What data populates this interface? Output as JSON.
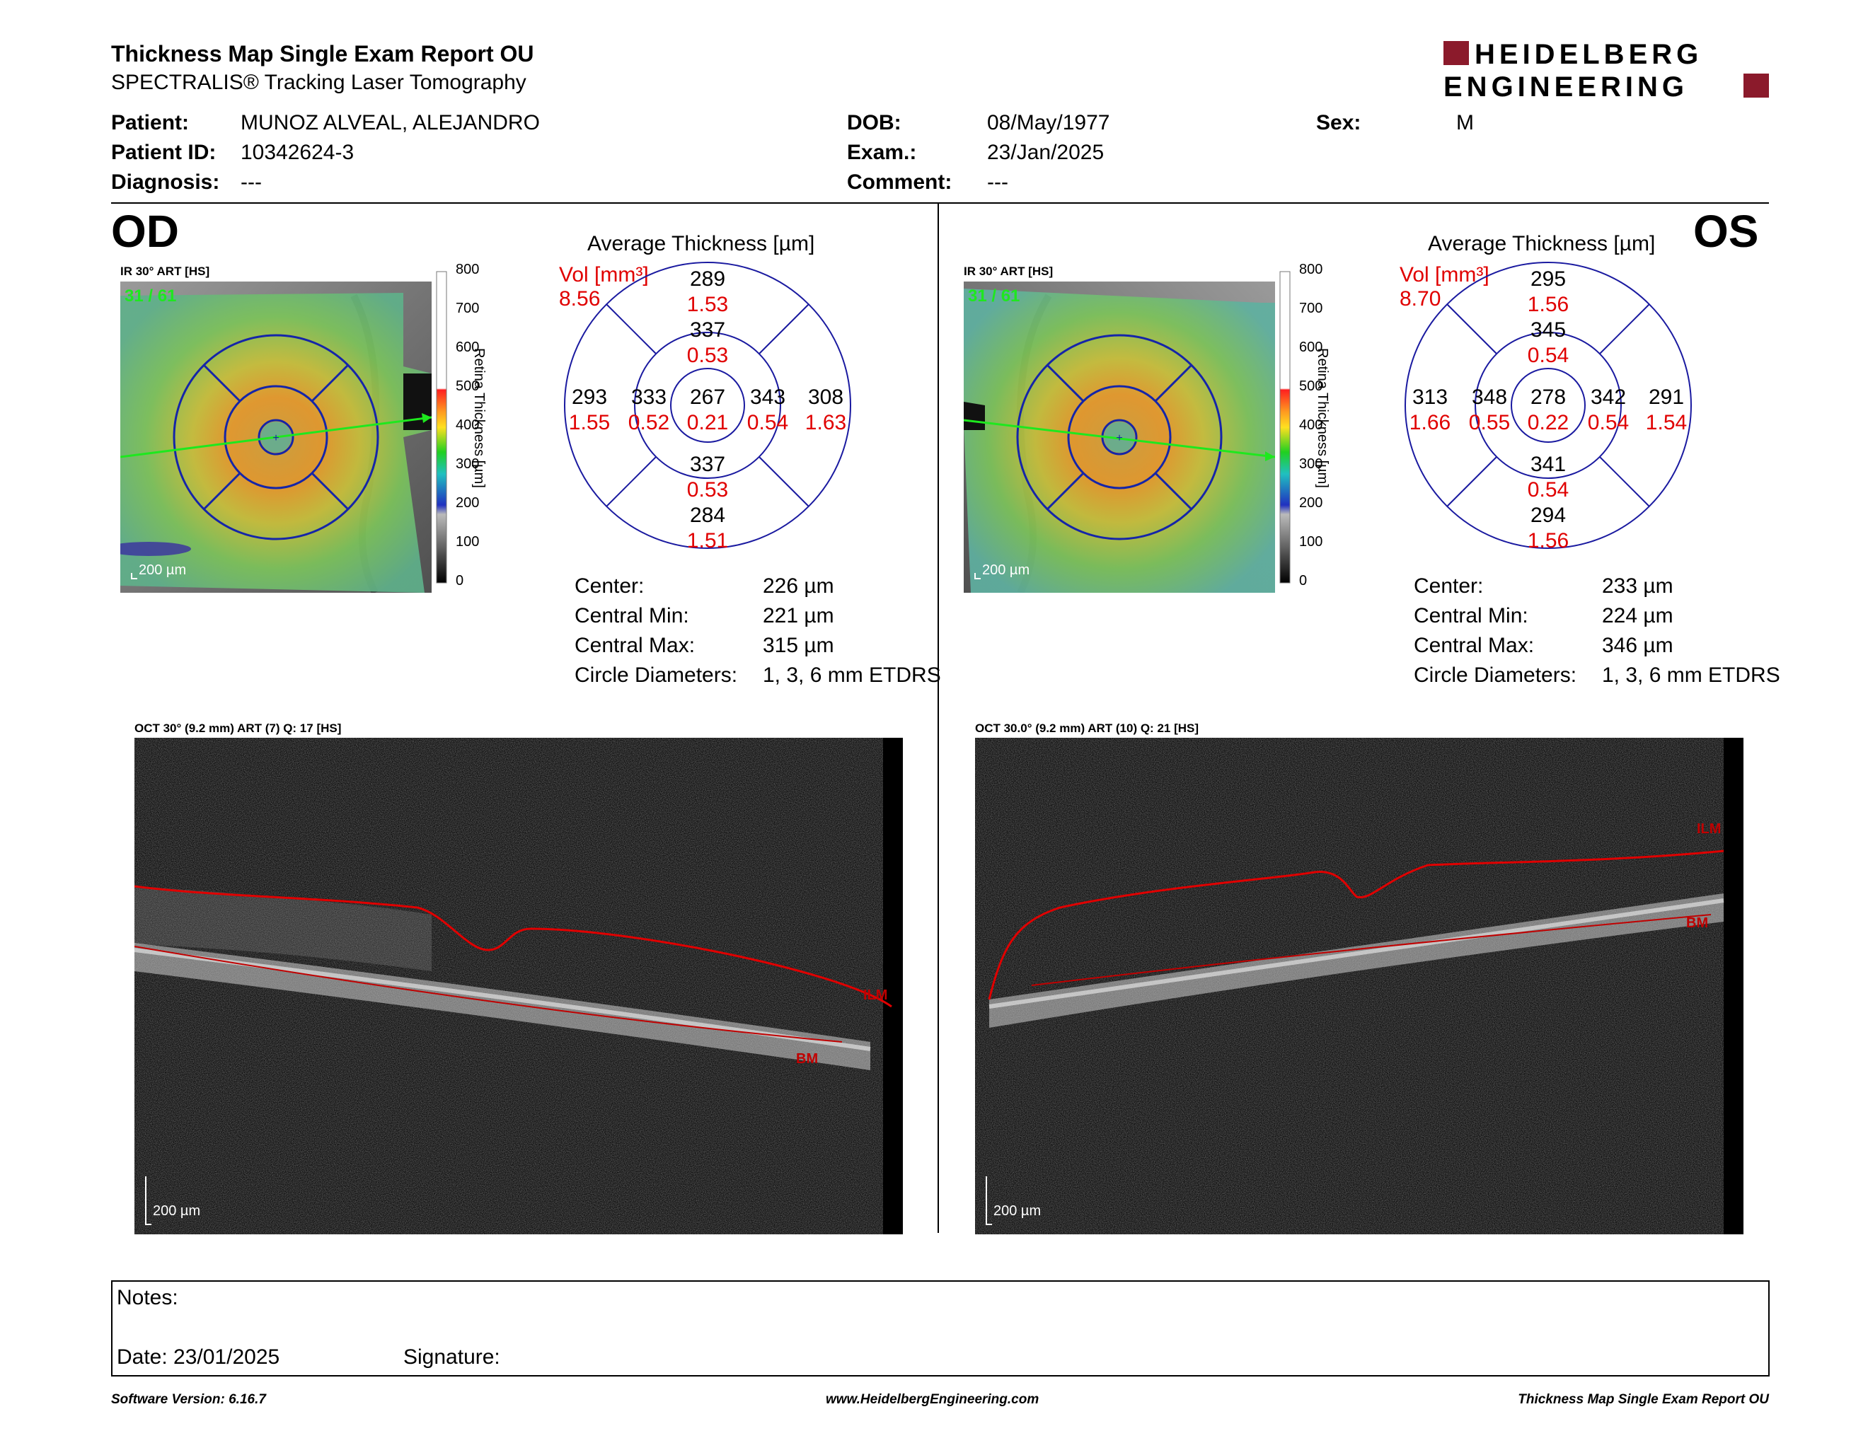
{
  "report": {
    "title": "Thickness Map Single Exam Report OU",
    "subtitle": "SPECTRALIS® Tracking Laser Tomography",
    "logo_line1": "HEIDELBERG",
    "logo_line2": "ENGINEERING",
    "brand_color": "#8b1a2b"
  },
  "patient": {
    "patient_label": "Patient:",
    "patient_value": "MUNOZ ALVEAL, ALEJANDRO",
    "id_label": "Patient ID:",
    "id_value": "10342624-3",
    "diagnosis_label": "Diagnosis:",
    "diagnosis_value": "---",
    "dob_label": "DOB:",
    "dob_value": "08/May/1977",
    "exam_label": "Exam.:",
    "exam_value": "23/Jan/2025",
    "comment_label": "Comment:",
    "comment_value": "---",
    "sex_label": "Sex:",
    "sex_value": "M"
  },
  "od": {
    "eye_label": "OD",
    "ir_label": "IR 30° ART [HS]",
    "frame_label": "31 / 61",
    "scale_label": "200 µm",
    "colorbar_ticks": [
      "800",
      "700",
      "600",
      "500",
      "400",
      "300",
      "200",
      "100",
      "0"
    ],
    "colorbar_title": "Retina  Thickness [µm]",
    "avg_title": "Average Thickness [µm]",
    "vol_label": "Vol [mm³]",
    "vol_value": "8.56",
    "sectors": {
      "center": {
        "t": "267",
        "v": "0.21"
      },
      "inner_top": {
        "t": "337",
        "v": "0.53"
      },
      "inner_bottom": {
        "t": "337",
        "v": "0.53"
      },
      "inner_left": {
        "t": "333",
        "v": "0.52"
      },
      "inner_right": {
        "t": "343",
        "v": "0.54"
      },
      "outer_top": {
        "t": "289",
        "v": "1.53"
      },
      "outer_bottom": {
        "t": "284",
        "v": "1.51"
      },
      "outer_left": {
        "t": "293",
        "v": "1.55"
      },
      "outer_right": {
        "t": "308",
        "v": "1.63"
      }
    },
    "stats": {
      "center_label": "Center:",
      "center_value": "226 µm",
      "min_label": "Central Min:",
      "min_value": "221 µm",
      "max_label": "Central Max:",
      "max_value": "315 µm",
      "diam_label": "Circle Diameters:",
      "diam_value": "1, 3, 6 mm ETDRS"
    },
    "oct_label": "OCT 30° (9.2 mm) ART (7) Q: 17 [HS]",
    "oct_scale": "200 µm",
    "ilm": "ILM",
    "bm": "BM"
  },
  "os": {
    "eye_label": "OS",
    "ir_label": "IR 30° ART [HS]",
    "frame_label": "31 / 61",
    "scale_label": "200 µm",
    "colorbar_ticks": [
      "800",
      "700",
      "600",
      "500",
      "400",
      "300",
      "200",
      "100",
      "0"
    ],
    "colorbar_title": "Retina  Thickness [µm]",
    "avg_title": "Average Thickness [µm]",
    "vol_label": "Vol [mm³]",
    "vol_value": "8.70",
    "sectors": {
      "center": {
        "t": "278",
        "v": "0.22"
      },
      "inner_top": {
        "t": "345",
        "v": "0.54"
      },
      "inner_bottom": {
        "t": "341",
        "v": "0.54"
      },
      "inner_left": {
        "t": "348",
        "v": "0.55"
      },
      "inner_right": {
        "t": "342",
        "v": "0.54"
      },
      "outer_top": {
        "t": "295",
        "v": "1.56"
      },
      "outer_bottom": {
        "t": "294",
        "v": "1.56"
      },
      "outer_left": {
        "t": "313",
        "v": "1.66"
      },
      "outer_right": {
        "t": "291",
        "v": "1.54"
      }
    },
    "stats": {
      "center_label": "Center:",
      "center_value": "233 µm",
      "min_label": "Central Min:",
      "min_value": "224 µm",
      "max_label": "Central Max:",
      "max_value": "346 µm",
      "diam_label": "Circle Diameters:",
      "diam_value": "1, 3, 6 mm ETDRS"
    },
    "oct_label": "OCT 30.0° (9.2 mm) ART (10) Q: 21 [HS]",
    "oct_scale": "200 µm",
    "ilm": "ILM",
    "bm": "BM"
  },
  "notes": {
    "notes_label": "Notes:",
    "date_label": "Date: 23/01/2025",
    "signature_label": "Signature:"
  },
  "footer": {
    "version": "Software Version: 6.16.7",
    "website": "www.HeidelbergEngineering.com",
    "report_name": "Thickness Map Single Exam Report OU"
  }
}
